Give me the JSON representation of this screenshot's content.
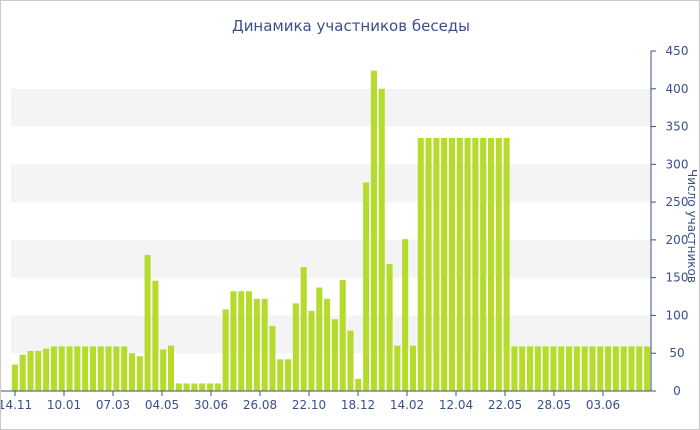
{
  "chart_data": {
    "type": "bar",
    "title": "Динамика участников беседы",
    "xlabel": "",
    "ylabel": "Число участников",
    "ylim": [
      0,
      450
    ],
    "y_ticks": [
      0,
      50,
      100,
      150,
      200,
      250,
      300,
      350,
      400,
      450
    ],
    "x_tick_labels": [
      "14.11",
      "10.01",
      "07.03",
      "04.05",
      "30.06",
      "26.08",
      "22.10",
      "18.12",
      "14.02",
      "12.04",
      "22.05",
      "28.05",
      "03.06"
    ],
    "y_axis_position": "right",
    "grid": "alternating horizontal bands",
    "legend": "none",
    "colors": {
      "bar": "#b5dc2d",
      "band": "#f4f4f4",
      "axis": "#3a4f8c",
      "text": "#3a4f8c"
    },
    "values": [
      35,
      48,
      53,
      53,
      56,
      59,
      59,
      59,
      59,
      59,
      59,
      59,
      59,
      59,
      59,
      50,
      46,
      180,
      146,
      55,
      60,
      10,
      10,
      10,
      10,
      10,
      10,
      108,
      132,
      132,
      132,
      122,
      122,
      86,
      42,
      42,
      116,
      164,
      106,
      137,
      122,
      95,
      147,
      80,
      16,
      276,
      424,
      400,
      168,
      60,
      201,
      60,
      335,
      335,
      335,
      335,
      335,
      335,
      335,
      335,
      335,
      335,
      335,
      335,
      59,
      59,
      59,
      59,
      59,
      59,
      59,
      59,
      59,
      59,
      59,
      59,
      59,
      59,
      59,
      59,
      59,
      59
    ]
  }
}
